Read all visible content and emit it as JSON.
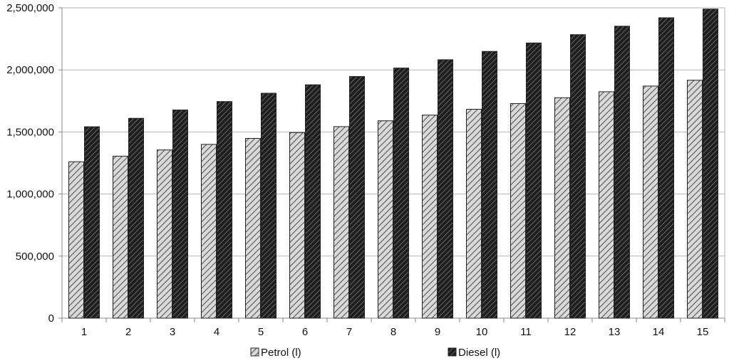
{
  "chart_data": {
    "type": "bar",
    "title": "",
    "xlabel": "",
    "ylabel": "",
    "categories": [
      "1",
      "2",
      "3",
      "4",
      "5",
      "6",
      "7",
      "8",
      "9",
      "10",
      "11",
      "12",
      "13",
      "14",
      "15"
    ],
    "series": [
      {
        "name": "Petrol (l)",
        "pattern": "light-hatch",
        "values": [
          1260000,
          1305000,
          1355000,
          1400000,
          1448000,
          1495000,
          1543000,
          1590000,
          1636000,
          1683000,
          1729000,
          1776000,
          1824000,
          1870000,
          1917000
        ]
      },
      {
        "name": "Diesel (l)",
        "pattern": "dark-hatch",
        "values": [
          1542000,
          1610000,
          1677000,
          1745000,
          1812000,
          1880000,
          1947000,
          2015000,
          2082000,
          2149000,
          2217000,
          2284000,
          2352000,
          2420000,
          2490000
        ]
      }
    ],
    "ylim": [
      0,
      2500000
    ],
    "y_ticks": [
      "0",
      "500,000",
      "1,000,000",
      "1,500,000",
      "2,000,000",
      "2,500,000"
    ],
    "grid": true,
    "legend_position": "bottom",
    "colors": {
      "grid": "#b3b3b3",
      "axis": "#888888",
      "bar_stroke": "#222222",
      "light_fill": "#d9d9d9",
      "dark_fill": "#3a3a3a"
    }
  }
}
